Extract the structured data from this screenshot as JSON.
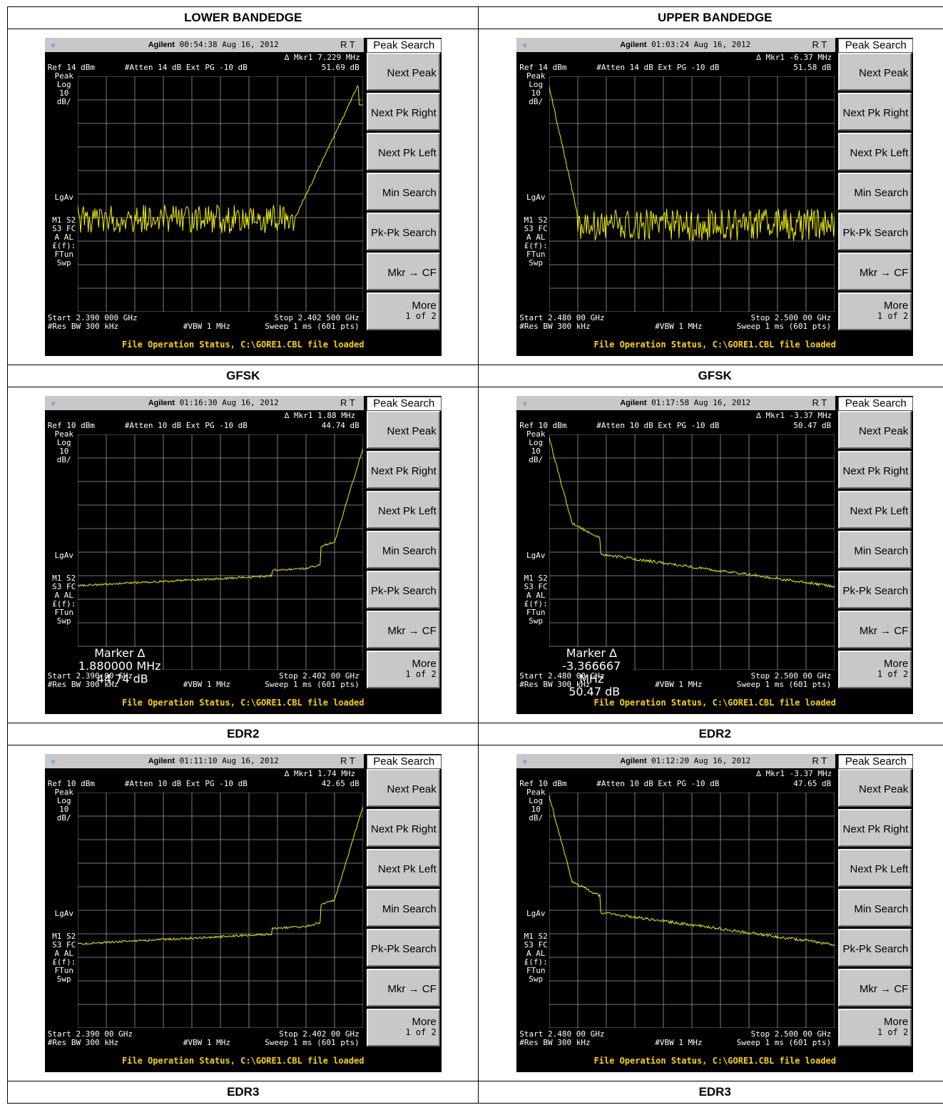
{
  "headers": [
    "LOWER BANDEDGE",
    "UPPER BANDEDGE"
  ],
  "softkeys": {
    "title": "Peak Search",
    "items": [
      "Next Peak",
      "Next Pk Right",
      "Next Pk Left",
      "Min Search",
      "Pk-Pk Search",
      "Mkr → CF"
    ],
    "more": "More",
    "more_sub": "1 of 2"
  },
  "common": {
    "brand": "Agilent",
    "rt": "R   T",
    "peak": "Peak",
    "log": "Log",
    "ten": "10",
    "dbdiv": "dB/",
    "lgav": "LgAv",
    "m1s2": "M1  S2",
    "s3fc": "S3  FC",
    "aal": "A   AL",
    "ef": "£(f):",
    "ftun": "FTun",
    "swp": "Swp",
    "resbw": "#Res BW 300 kHz",
    "vbw": "#VBW 1 MHz",
    "sweep": "Sweep 1 ms (601 pts)",
    "status": "File Operation Status, C:\\GORE1.CBL file loaded",
    "marker_label": "Marker ∆"
  },
  "rows": [
    {
      "label": "GFSK",
      "cells": [
        {
          "time": "00:54:38  Aug 16, 2012",
          "mkr": "∆ Mkr1  7.229 MHz",
          "mkrval": "51.69 dB",
          "ref": "Ref 14 dBm",
          "atten": "#Atten 14 dB  Ext PG -10 dB",
          "start": "Start 2.390 000 GHz",
          "stop": "Stop 2.402 500 GHz",
          "trace": "lower_noise",
          "marker_box": null
        },
        {
          "time": "01:03:24  Aug 16, 2012",
          "mkr": "∆ Mkr1  -6.37 MHz",
          "mkrval": "51.58 dB",
          "ref": "Ref 14 dBm",
          "atten": "#Atten 14 dB  Ext PG -10 dB",
          "start": "Start 2.480 00 GHz",
          "stop": "Stop 2.500 00 GHz",
          "trace": "upper_noise",
          "marker_box": null
        }
      ]
    },
    {
      "label": "EDR2",
      "cells": [
        {
          "time": "01:16:30  Aug 16, 2012",
          "mkr": "∆ Mkr1  1.88 MHz",
          "mkrval": "44.74 dB",
          "ref": "Ref 10 dBm",
          "atten": "#Atten 10 dB  Ext PG -10 dB",
          "start": "Start 2.390 00 GHz",
          "stop": "Stop 2.402 00 GHz",
          "trace": "lower_smooth",
          "marker_box": {
            "freq": "1.880000 MHz",
            "db": "44.74 dB"
          }
        },
        {
          "time": "01:17:58  Aug 16, 2012",
          "mkr": "∆ Mkr1  -3.37 MHz",
          "mkrval": "50.47 dB",
          "ref": "Ref 10 dBm",
          "atten": "#Atten 10 dB  Ext PG -10 dB",
          "start": "Start 2.480 00 GHz",
          "stop": "Stop 2.500 00 GHz",
          "trace": "upper_smooth",
          "marker_box": {
            "freq": "-3.366667 MHz",
            "db": "50.47 dB"
          }
        }
      ]
    },
    {
      "label": "EDR3",
      "cells": [
        {
          "time": "01:11:10  Aug 16, 2012",
          "mkr": "∆ Mkr1  1.74 MHz",
          "mkrval": "42.65 dB",
          "ref": "Ref 10 dBm",
          "atten": "#Atten 10 dB  Ext PG -10 dB",
          "start": "Start 2.390 00 GHz",
          "stop": "Stop 2.402 00 GHz",
          "trace": "lower_smooth",
          "marker_box": null
        },
        {
          "time": "01:12:20  Aug 16, 2012",
          "mkr": "∆ Mkr1  -3.37 MHz",
          "mkrval": "47.65 dB",
          "ref": "Ref 10 dBm",
          "atten": "#Atten 10 dB  Ext PG -10 dB",
          "start": "Start 2.480 00 GHz",
          "stop": "Stop 2.500 00 GHz",
          "trace": "upper_smooth2",
          "marker_box": null
        }
      ]
    }
  ]
}
